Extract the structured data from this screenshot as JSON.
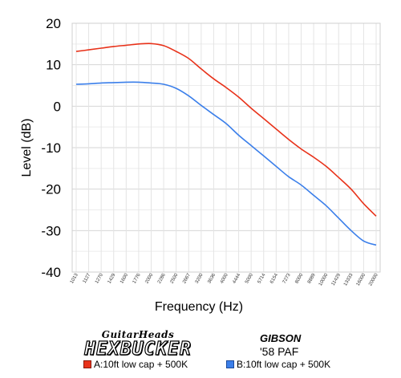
{
  "chart_data": {
    "type": "line",
    "title": "",
    "xlabel": "Frequency (Hz)",
    "ylabel": "Level (dB)",
    "ylim": [
      -40,
      20
    ],
    "yticks": [
      "20",
      "10",
      "0",
      "-10",
      "-20",
      "-30",
      "-40"
    ],
    "grid": true,
    "legend_position": "bottom",
    "x": [
      "1013",
      "1127",
      "1270",
      "1429",
      "1600",
      "1776",
      "2000",
      "2286",
      "2500",
      "2667",
      "3200",
      "3636",
      "4000",
      "4444",
      "5000",
      "5714",
      "6154",
      "7273",
      "8000",
      "8889",
      "10000",
      "11429",
      "13333",
      "16000",
      "20000"
    ],
    "series": [
      {
        "name": "A:10ft low cap + 500K",
        "color": "#e8321a",
        "values": [
          13.2,
          13.6,
          14.0,
          14.4,
          14.7,
          15.0,
          15.1,
          14.6,
          13.2,
          11.5,
          9.0,
          6.6,
          4.5,
          2.2,
          -0.5,
          -3.0,
          -5.5,
          -8.0,
          -10.3,
          -12.3,
          -14.5,
          -17.2,
          -20.0,
          -23.5,
          -26.5
        ]
      },
      {
        "name": "B:10ft low cap + 500K",
        "color": "#3b7fea",
        "values": [
          5.3,
          5.4,
          5.6,
          5.7,
          5.8,
          5.8,
          5.6,
          5.3,
          4.3,
          2.5,
          0.2,
          -2.0,
          -4.2,
          -7.0,
          -9.5,
          -12.0,
          -14.5,
          -17.0,
          -19.0,
          -21.5,
          -24.0,
          -27.0,
          -30.0,
          -32.5,
          -33.5
        ]
      }
    ]
  },
  "brand": {
    "left_top": "GuitarHeads",
    "left_main": "HEXBUCKER",
    "right_top": "GIBSON",
    "right_bottom": "'58 PAF"
  }
}
